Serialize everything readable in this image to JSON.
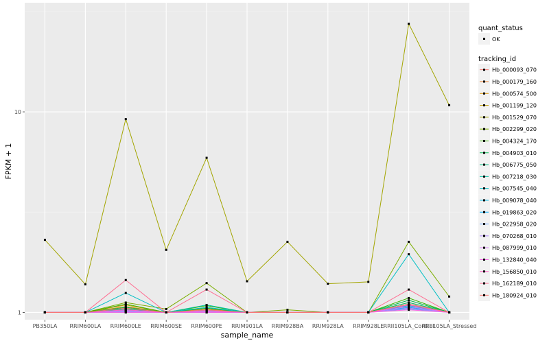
{
  "chart_data": {
    "type": "line",
    "title": "",
    "xlabel": "sample_name",
    "ylabel": "FPKM + 1",
    "y_scale": "log10",
    "ylim": [
      0.92,
      35
    ],
    "y_ticks": [
      1,
      10
    ],
    "y_tick_labels": [
      "1",
      "10"
    ],
    "categories": [
      "PB350LA",
      "RRIM600LA",
      "RRIM600LE",
      "RRIM600SE",
      "RRIM600PE",
      "RRIM901LA",
      "RRIM928BA",
      "RRIM928LA",
      "RRIM928LE",
      "RRII105LA_Control",
      "RRII105LA_Stressed"
    ],
    "grid": true,
    "legend_position": "right",
    "point_legend": {
      "title": "quant_status",
      "label": "OK"
    },
    "series_legend_title": "tracking_id",
    "series": [
      {
        "name": "Hb_000093_070",
        "color": "#F8766D",
        "values": [
          1.0,
          1.0,
          1.02,
          1.0,
          1.0,
          1.0,
          1.0,
          1.0,
          1.0,
          1.05,
          1.0
        ]
      },
      {
        "name": "Hb_000179_160",
        "color": "#EA8331",
        "values": [
          1.0,
          1.0,
          1.05,
          1.0,
          1.02,
          1.0,
          1.0,
          1.0,
          1.0,
          1.08,
          1.0
        ]
      },
      {
        "name": "Hb_000574_500",
        "color": "#D89000",
        "values": [
          1.0,
          1.0,
          1.07,
          1.0,
          1.04,
          1.0,
          1.0,
          1.0,
          1.0,
          1.1,
          1.0
        ]
      },
      {
        "name": "Hb_001199_120",
        "color": "#C09B00",
        "values": [
          1.0,
          1.0,
          1.09,
          1.0,
          1.05,
          1.0,
          1.0,
          1.0,
          1.0,
          1.12,
          1.0
        ]
      },
      {
        "name": "Hb_001529_070",
        "color": "#A3A500",
        "values": [
          2.3,
          1.38,
          9.2,
          2.05,
          5.9,
          1.43,
          2.25,
          1.39,
          1.42,
          27.5,
          10.8
        ]
      },
      {
        "name": "Hb_002299_020",
        "color": "#7CAE00",
        "values": [
          1.0,
          1.0,
          1.12,
          1.04,
          1.4,
          1.0,
          1.03,
          1.0,
          1.0,
          2.25,
          1.2
        ]
      },
      {
        "name": "Hb_004324_170",
        "color": "#39B600",
        "values": [
          1.0,
          1.0,
          1.1,
          1.0,
          1.08,
          1.0,
          1.0,
          1.0,
          1.0,
          1.18,
          1.0
        ]
      },
      {
        "name": "Hb_004903_010",
        "color": "#00BB4E",
        "values": [
          1.0,
          1.0,
          1.06,
          1.0,
          1.05,
          1.0,
          1.0,
          1.0,
          1.0,
          1.15,
          1.0
        ]
      },
      {
        "name": "Hb_006775_050",
        "color": "#00BF7D",
        "values": [
          1.0,
          1.0,
          1.04,
          1.0,
          1.03,
          1.0,
          1.0,
          1.0,
          1.0,
          1.12,
          1.0
        ]
      },
      {
        "name": "Hb_007218_030",
        "color": "#00C1A3",
        "values": [
          1.0,
          1.0,
          1.03,
          1.0,
          1.09,
          1.0,
          1.0,
          1.0,
          1.0,
          1.1,
          1.0
        ]
      },
      {
        "name": "Hb_007545_040",
        "color": "#00BFC4",
        "values": [
          1.0,
          1.0,
          1.25,
          1.0,
          1.06,
          1.0,
          1.0,
          1.0,
          1.0,
          1.95,
          1.0
        ]
      },
      {
        "name": "Hb_009078_040",
        "color": "#00B9E3",
        "values": [
          1.0,
          1.0,
          1.02,
          1.0,
          1.02,
          1.0,
          1.0,
          1.0,
          1.0,
          1.08,
          1.0
        ]
      },
      {
        "name": "Hb_019863_020",
        "color": "#00ADFA",
        "values": [
          1.0,
          1.0,
          1.01,
          1.0,
          1.01,
          1.0,
          1.0,
          1.0,
          1.0,
          1.06,
          1.0
        ]
      },
      {
        "name": "Hb_022958_020",
        "color": "#619CFF",
        "values": [
          1.0,
          1.0,
          1.0,
          1.0,
          1.0,
          1.0,
          1.0,
          1.0,
          1.0,
          1.04,
          1.0
        ]
      },
      {
        "name": "Hb_070268_010",
        "color": "#AE87FF",
        "values": [
          1.0,
          1.0,
          1.01,
          1.0,
          1.0,
          1.0,
          1.0,
          1.0,
          1.0,
          1.05,
          1.0
        ]
      },
      {
        "name": "Hb_087999_010",
        "color": "#DB72FB",
        "values": [
          1.0,
          1.0,
          1.02,
          1.0,
          1.01,
          1.0,
          1.0,
          1.0,
          1.0,
          1.07,
          1.0
        ]
      },
      {
        "name": "Hb_132840_040",
        "color": "#F564E3",
        "values": [
          1.0,
          1.0,
          1.0,
          1.0,
          1.0,
          1.0,
          1.0,
          1.0,
          1.0,
          1.03,
          1.0
        ]
      },
      {
        "name": "Hb_156850_010",
        "color": "#FF61C3",
        "values": [
          1.0,
          1.0,
          1.03,
          1.0,
          1.02,
          1.0,
          1.0,
          1.0,
          1.0,
          1.09,
          1.0
        ]
      },
      {
        "name": "Hb_162189_010",
        "color": "#FF6C91",
        "values": [
          1.0,
          1.0,
          1.45,
          1.0,
          1.3,
          1.0,
          1.0,
          1.0,
          1.0,
          1.3,
          1.0
        ]
      },
      {
        "name": "Hb_180924_010",
        "color": "#F8766D",
        "values": [
          1.0,
          1.0,
          1.05,
          1.0,
          1.03,
          1.0,
          1.0,
          1.0,
          1.0,
          1.1,
          1.0
        ]
      }
    ]
  },
  "colors": {
    "panel_bg": "#EBEBEB",
    "grid_major": "#FFFFFF",
    "grid_minor": "#F5F5F5",
    "point": "#000000"
  }
}
